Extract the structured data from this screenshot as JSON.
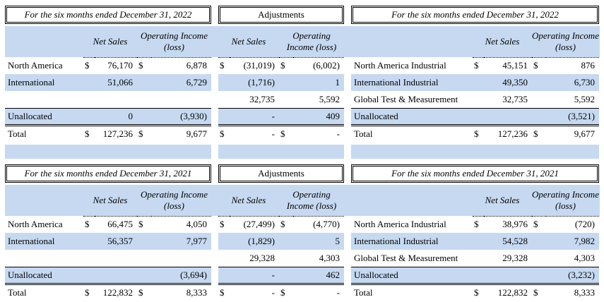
{
  "colors": {
    "row_shading": "#c6d9f1",
    "rule": "#000000",
    "background": "#ffffff"
  },
  "sections": [
    {
      "period": "2022",
      "tables": [
        {
          "title": "For the six months ended December 31, 2022",
          "col_headers": [
            "Net Sales",
            "Operating Income (loss)"
          ],
          "rows": [
            {
              "label": "North America",
              "d1": "$",
              "v1": "76,170",
              "d2": "$",
              "v2": "6,878",
              "shaded": false
            },
            {
              "label": "International",
              "d1": "",
              "v1": "51,066",
              "d2": "",
              "v2": "6,729",
              "shaded": true
            },
            {
              "label": "",
              "d1": "",
              "v1": "",
              "d2": "",
              "v2": "",
              "shaded": false
            },
            {
              "label": "Unallocated",
              "d1": "",
              "v1": "0",
              "d2": "",
              "v2": "(3,930)",
              "shaded": true,
              "rule": "single"
            },
            {
              "label": "Total",
              "d1": "$",
              "v1": "127,236",
              "d2": "$",
              "v2": "9,677",
              "shaded": false,
              "rule": "double"
            }
          ]
        },
        {
          "title": "Adjustments",
          "col_headers": [
            "Net Sales",
            "Operating Income (loss)"
          ],
          "rows": [
            {
              "d1": "$",
              "v1": "(31,019)",
              "d2": "$",
              "v2": "(6,002)",
              "shaded": false
            },
            {
              "d1": "",
              "v1": "(1,716)",
              "d2": "",
              "v2": "1",
              "shaded": true
            },
            {
              "d1": "",
              "v1": "32,735",
              "d2": "",
              "v2": "5,592",
              "shaded": false
            },
            {
              "d1": "",
              "v1": "-",
              "d2": "",
              "v2": "409",
              "shaded": true,
              "rule": "single"
            },
            {
              "d1": "$",
              "v1": "-",
              "d2": "$",
              "v2": "-",
              "shaded": false,
              "rule": "double"
            }
          ]
        },
        {
          "title": "For the six months ended December 31, 2022",
          "col_headers": [
            "Net Sales",
            "Operating Income (loss)"
          ],
          "rows": [
            {
              "label": "North America Industrial",
              "d1": "$",
              "v1": "45,151",
              "d2": "$",
              "v2": "876",
              "shaded": false
            },
            {
              "label": "International Industrial",
              "d1": "",
              "v1": "49,350",
              "d2": "",
              "v2": "6,730",
              "shaded": true
            },
            {
              "label": "Global Test & Measurement",
              "d1": "",
              "v1": "32,735",
              "d2": "",
              "v2": "5,592",
              "shaded": false
            },
            {
              "label": "Unallocated",
              "d1": "",
              "v1": "",
              "d2": "",
              "v2": "(3,521)",
              "shaded": true,
              "rule": "single"
            },
            {
              "label": "Total",
              "d1": "$",
              "v1": "127,236",
              "d2": "$",
              "v2": "9,677",
              "shaded": false,
              "rule": "double"
            }
          ]
        }
      ]
    },
    {
      "period": "2021",
      "tables": [
        {
          "title": "For the six months ended December 31, 2021",
          "col_headers": [
            "Net Sales",
            "Operating Income (loss)"
          ],
          "rows": [
            {
              "label": "North America",
              "d1": "$",
              "v1": "66,475",
              "d2": "$",
              "v2": "4,050",
              "shaded": false
            },
            {
              "label": "International",
              "d1": "",
              "v1": "56,357",
              "d2": "",
              "v2": "7,977",
              "shaded": true
            },
            {
              "label": "",
              "d1": "",
              "v1": "",
              "d2": "",
              "v2": "",
              "shaded": false
            },
            {
              "label": "Unallocated",
              "d1": "",
              "v1": "",
              "d2": "",
              "v2": "(3,694)",
              "shaded": true,
              "rule": "single"
            },
            {
              "label": "Total",
              "d1": "$",
              "v1": "122,832",
              "d2": "$",
              "v2": "8,333",
              "shaded": false,
              "rule": "double"
            }
          ]
        },
        {
          "title": "Adjustments",
          "col_headers": [
            "Net Sales",
            "Operating Income (loss)"
          ],
          "rows": [
            {
              "d1": "$",
              "v1": "(27,499)",
              "d2": "$",
              "v2": "(4,770)",
              "shaded": false
            },
            {
              "d1": "",
              "v1": "(1,829)",
              "d2": "",
              "v2": "5",
              "shaded": true
            },
            {
              "d1": "",
              "v1": "29,328",
              "d2": "",
              "v2": "4,303",
              "shaded": false
            },
            {
              "d1": "",
              "v1": "-",
              "d2": "",
              "v2": "462",
              "shaded": true,
              "rule": "single"
            },
            {
              "d1": "$",
              "v1": "-",
              "d2": "$",
              "v2": "-",
              "shaded": false,
              "rule": "double"
            }
          ]
        },
        {
          "title": "For the six months ended December 31, 2021",
          "col_headers": [
            "Net Sales",
            "Operating Income (loss)"
          ],
          "rows": [
            {
              "label": "North America Industrial",
              "d1": "$",
              "v1": "38,976",
              "d2": "$",
              "v2": "(720)",
              "shaded": false
            },
            {
              "label": "International Industrial",
              "d1": "",
              "v1": "54,528",
              "d2": "",
              "v2": "7,982",
              "shaded": true
            },
            {
              "label": "Global Test & Measurement",
              "d1": "",
              "v1": "29,328",
              "d2": "",
              "v2": "4,303",
              "shaded": false
            },
            {
              "label": "Unallocated",
              "d1": "",
              "v1": "",
              "d2": "",
              "v2": "(3,232)",
              "shaded": true,
              "rule": "single"
            },
            {
              "label": "Total",
              "d1": "$",
              "v1": "122,832",
              "d2": "$",
              "v2": "8,333",
              "shaded": false,
              "rule": "double"
            }
          ]
        }
      ]
    }
  ]
}
